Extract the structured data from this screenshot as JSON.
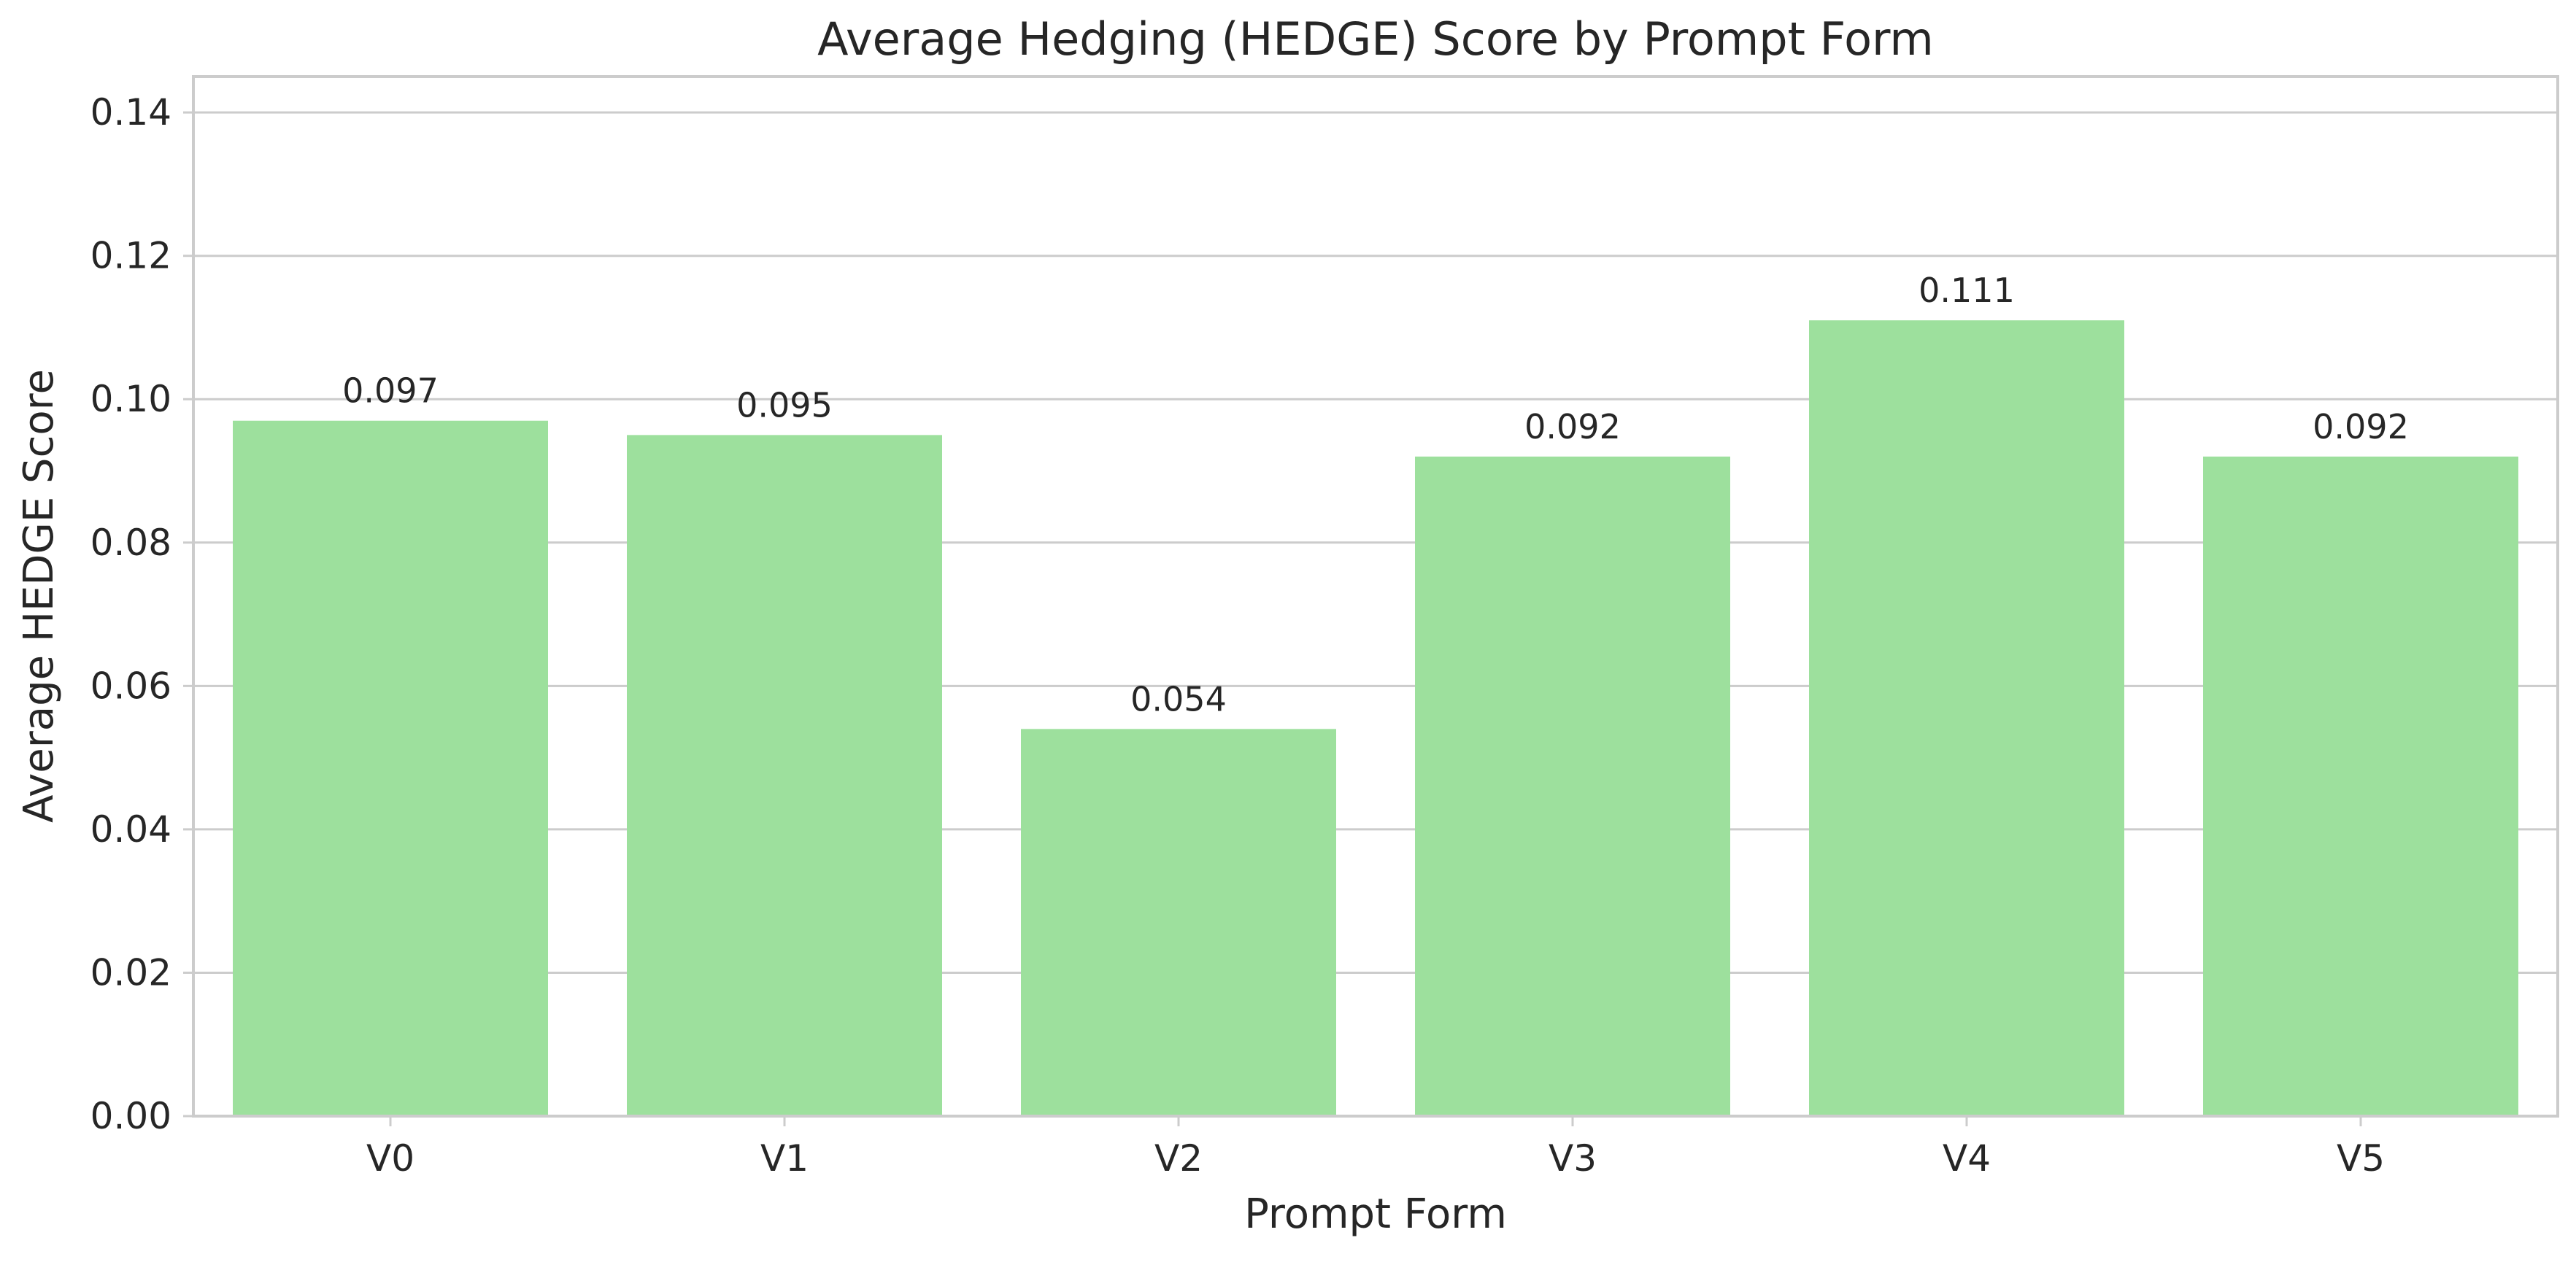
{
  "chart_data": {
    "type": "bar",
    "title": "Average Hedging (HEDGE) Score by Prompt Form",
    "xlabel": "Prompt Form",
    "ylabel": "Average HEDGE Score",
    "categories": [
      "V0",
      "V1",
      "V2",
      "V3",
      "V4",
      "V5"
    ],
    "values": [
      0.097,
      0.095,
      0.054,
      0.092,
      0.111,
      0.092
    ],
    "data_labels": [
      "0.097",
      "0.095",
      "0.054",
      "0.092",
      "0.111",
      "0.092"
    ],
    "ylim": [
      0,
      0.145
    ],
    "yticks": [
      0.0,
      0.02,
      0.04,
      0.06,
      0.08,
      0.1,
      0.12,
      0.14
    ],
    "ytick_labels": [
      "0.00",
      "0.02",
      "0.04",
      "0.06",
      "0.08",
      "0.10",
      "0.12",
      "0.14"
    ],
    "grid": "horizontal",
    "legend": "none",
    "bar_color": "#9de09d",
    "grid_color": "#cccccc",
    "axis_color": "#cccccc",
    "text_color": "#262626"
  }
}
